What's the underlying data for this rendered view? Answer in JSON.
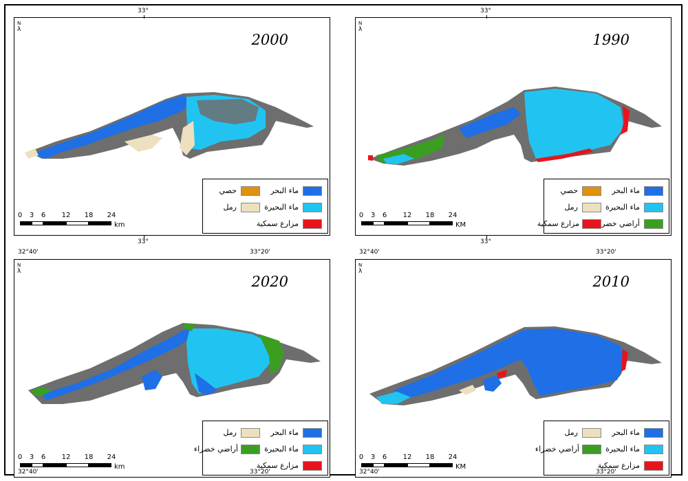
{
  "north_symbol": "λ",
  "north_letter": "N",
  "scale_labels": [
    "0",
    "3",
    "6",
    "12",
    "18",
    "24"
  ],
  "colors": {
    "sea_water": "#1f6fe6",
    "lake_water": "#21c4f0",
    "gravel": "#e0920e",
    "sand": "#ece0bf",
    "fish_farms": "#e8141c",
    "green_land": "#3a9e21",
    "land": "#6e6e6e"
  },
  "panels": [
    {
      "id": "2000",
      "year": "2000",
      "top_coord": "33°",
      "bottom_coord_center": "33°",
      "scale_unit": "km",
      "legend": [
        {
          "label": "ماء البحر",
          "swatch": "sea_water"
        },
        {
          "label": "حصي",
          "swatch": "gravel"
        },
        {
          "label": "ماء البحيرة",
          "swatch": "lake_water"
        },
        {
          "label": "رمل",
          "swatch": "sand"
        },
        {
          "label": "مزارع سمكية",
          "swatch": "fish_farms"
        }
      ]
    },
    {
      "id": "1990",
      "year": "1990",
      "top_coord": "33°",
      "bottom_coord_center": "33°",
      "scale_unit": "KM",
      "legend": [
        {
          "label": "ماء البحر",
          "swatch": "sea_water"
        },
        {
          "label": "حصي",
          "swatch": "gravel"
        },
        {
          "label": "ماء البحيرة",
          "swatch": "lake_water"
        },
        {
          "label": "رمل",
          "swatch": "sand"
        },
        {
          "label": "أراضي خضراء",
          "swatch": "green_land"
        },
        {
          "label": "مزارع سمكية",
          "swatch": "fish_farms"
        }
      ]
    },
    {
      "id": "2020",
      "year": "2020",
      "top_coord_left": "32°40'",
      "top_coord_right": "33°20'",
      "bottom_coord_left": "32°40'",
      "bottom_coord_right": "33°20'",
      "scale_unit": "km",
      "legend": [
        {
          "label": "ماء البحر",
          "swatch": "sea_water"
        },
        {
          "label": "رمل",
          "swatch": "sand"
        },
        {
          "label": "ماء البحيرة",
          "swatch": "lake_water"
        },
        {
          "label": "أراضي خضراء",
          "swatch": "green_land"
        },
        {
          "label": "مزارع سمكية",
          "swatch": "fish_farms"
        }
      ]
    },
    {
      "id": "2010",
      "year": "2010",
      "top_coord_left": "32°40'",
      "top_coord_right": "33°20'",
      "bottom_coord_left": "32°40'",
      "bottom_coord_right": "33°20'",
      "scale_unit": "KM",
      "legend": [
        {
          "label": "ماء البحر",
          "swatch": "sea_water"
        },
        {
          "label": "رمل",
          "swatch": "sand"
        },
        {
          "label": "ماء البحيرة",
          "swatch": "lake_water"
        },
        {
          "label": "أراضي خضراء",
          "swatch": "green_land"
        },
        {
          "label": "مزارع سمكية",
          "swatch": "fish_farms"
        }
      ]
    }
  ]
}
